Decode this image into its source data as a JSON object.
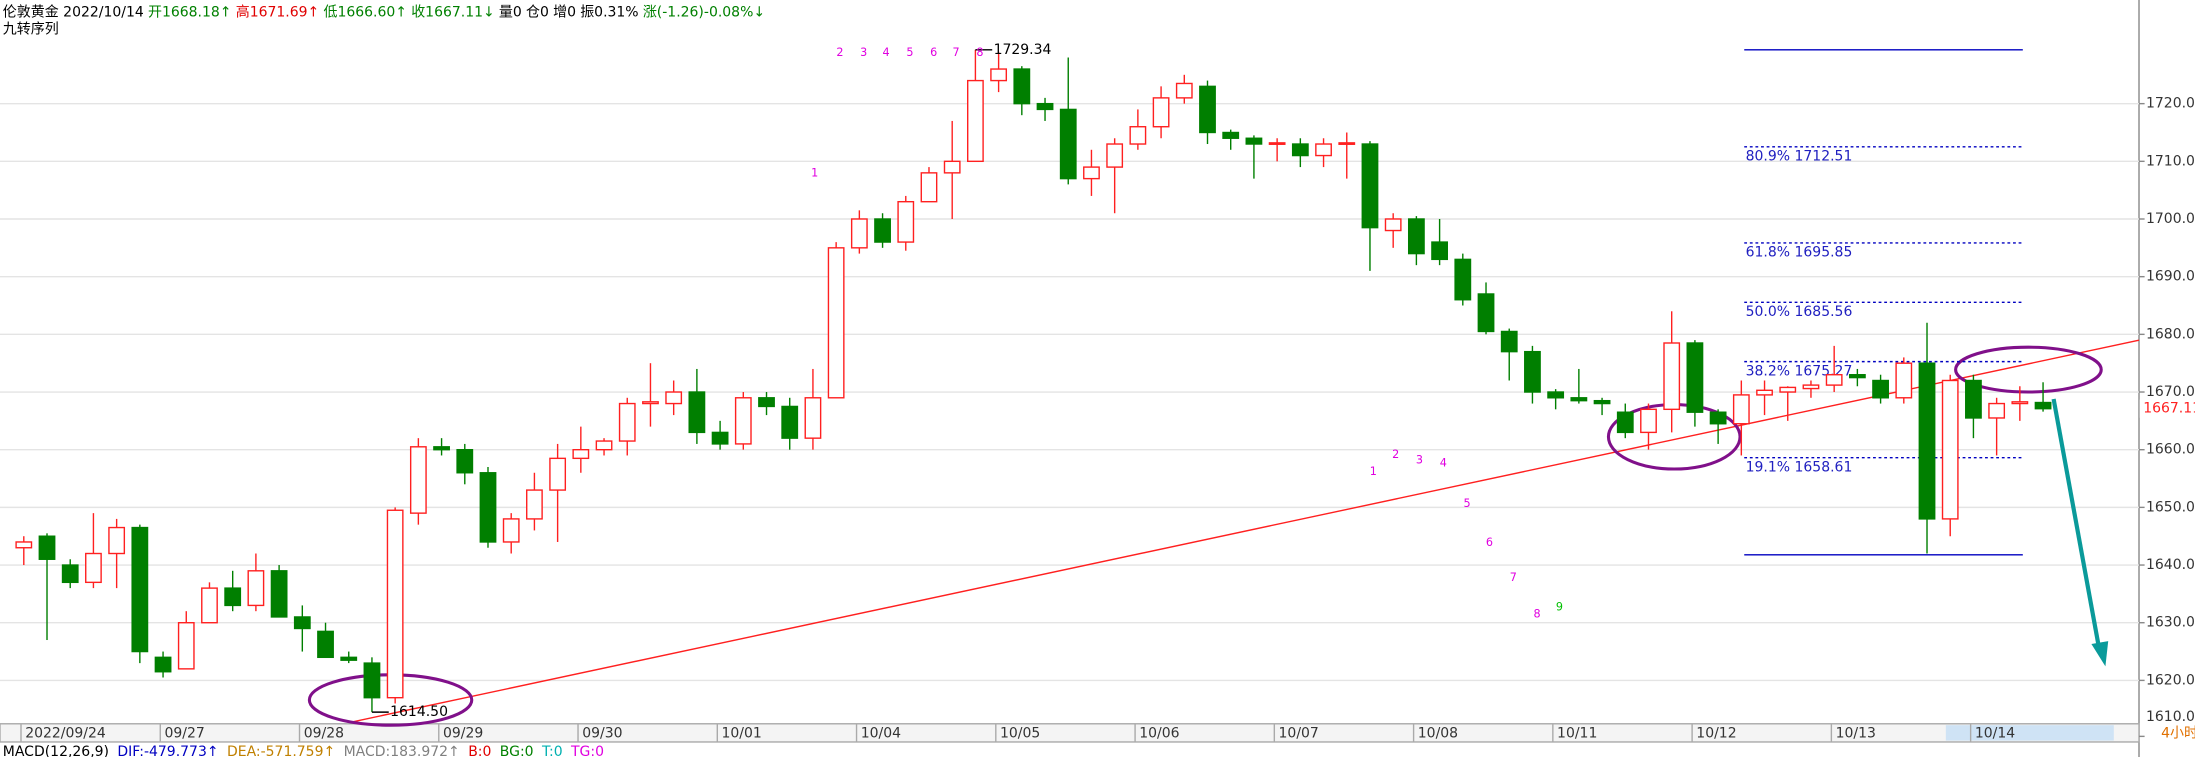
{
  "chart_data": {
    "type": "candlestick",
    "header": [
      {
        "text": "伦敦黄金 2022/10/14",
        "color": "#000000"
      },
      {
        "text": "开1668.18↑",
        "color": "#008000"
      },
      {
        "text": "高1671.69↑",
        "color": "#e00000"
      },
      {
        "text": "低1666.60↑",
        "color": "#008000"
      },
      {
        "text": "收1667.11↓",
        "color": "#008000"
      },
      {
        "text": "量0",
        "color": "#000000"
      },
      {
        "text": "仓0",
        "color": "#000000"
      },
      {
        "text": "增0",
        "color": "#000000"
      },
      {
        "text": "振0.31%",
        "color": "#000000"
      },
      {
        "text": "涨(-1.26)-0.08%↓",
        "color": "#008000"
      }
    ],
    "subtitle": "九转序列",
    "categories": [
      "2022/09/24",
      null,
      null,
      null,
      null,
      null,
      "09/27",
      null,
      null,
      null,
      null,
      null,
      "09/28",
      null,
      null,
      null,
      null,
      null,
      "09/29",
      null,
      null,
      null,
      null,
      null,
      "09/30",
      null,
      null,
      null,
      null,
      null,
      "10/01",
      null,
      null,
      null,
      null,
      null,
      "10/04",
      null,
      null,
      null,
      null,
      null,
      "10/05",
      null,
      null,
      null,
      null,
      null,
      "10/06",
      null,
      null,
      null,
      null,
      null,
      "10/07",
      null,
      null,
      null,
      null,
      null,
      "10/08",
      null,
      null,
      null,
      null,
      null,
      "10/11",
      null,
      null,
      null,
      null,
      null,
      "10/12",
      null,
      null,
      null,
      null,
      null,
      "10/13",
      null,
      null,
      null,
      null,
      null,
      "10/14",
      null,
      null,
      null
    ],
    "open": [
      1643,
      1645,
      1640,
      1637,
      1642,
      1646.5,
      1624,
      1622,
      1630,
      1636,
      1633,
      1639,
      1631,
      1628.5,
      1624,
      1623,
      1617,
      1649,
      1660.5,
      1660,
      1656,
      1644,
      1648,
      1653,
      1658.5,
      1660,
      1661.5,
      1668,
      1668,
      1670,
      1663,
      1661,
      1669,
      1667.5,
      1662,
      1669,
      1695,
      1700,
      1696,
      1703,
      1708,
      1710,
      1724,
      1726,
      1720,
      1719,
      1707,
      1709,
      1713,
      1716,
      1721,
      1723,
      1715,
      1714,
      1713,
      1713,
      1711,
      1713,
      1713,
      1698,
      1700,
      1696,
      1693,
      1687,
      1680.5,
      1677,
      1670,
      1669,
      1668.5,
      1666.5,
      1663,
      1667,
      1678.5,
      1666.5,
      1664.5,
      1669.5,
      1670,
      1670.6,
      1671.2,
      1673,
      1672,
      1669,
      1675,
      1648,
      1672,
      1665.5,
      1668,
      1668.18
    ],
    "high": [
      1645,
      1645.5,
      1641,
      1649,
      1648,
      1647,
      1625,
      1632,
      1637,
      1639,
      1642,
      1640,
      1633,
      1630,
      1625,
      1624,
      1650,
      1662,
      1662,
      1661,
      1657,
      1649,
      1656,
      1661,
      1664,
      1662,
      1669,
      1675,
      1672,
      1674,
      1665,
      1670,
      1670,
      1669,
      1674,
      1696,
      1701.5,
      1701,
      1704,
      1709,
      1717,
      1729.34,
      1729,
      1726.5,
      1721,
      1728,
      1712,
      1714,
      1719,
      1723,
      1725,
      1724,
      1715.5,
      1714.5,
      1714,
      1714,
      1714,
      1715,
      1713.5,
      1701,
      1700.5,
      1700,
      1694,
      1689,
      1681,
      1678,
      1670.5,
      1674,
      1669,
      1668,
      1668,
      1684,
      1679,
      1667,
      1672,
      1672,
      1671,
      1672,
      1678,
      1674,
      1673,
      1676,
      1682,
      1673,
      1673,
      1669,
      1671,
      1671.69
    ],
    "low": [
      1640,
      1627,
      1636,
      1636,
      1636,
      1623,
      1620.5,
      1622,
      1630,
      1632,
      1632,
      1631,
      1625,
      1624,
      1623,
      1614.5,
      1616,
      1647,
      1659,
      1654,
      1643,
      1642,
      1646,
      1644,
      1656,
      1659,
      1659,
      1664,
      1666,
      1661,
      1660,
      1660,
      1666,
      1660,
      1660,
      1669,
      1694,
      1695,
      1694.5,
      1703,
      1700,
      1710,
      1722,
      1718,
      1717,
      1706,
      1704,
      1701,
      1712,
      1714,
      1720,
      1713,
      1712,
      1707,
      1710,
      1709,
      1709,
      1707,
      1691,
      1695,
      1692,
      1692,
      1685,
      1680,
      1672,
      1668,
      1667,
      1668,
      1666,
      1662,
      1660,
      1663,
      1664,
      1661,
      1659,
      1666,
      1665,
      1669,
      1670,
      1671,
      1668,
      1668,
      1642,
      1645,
      1662,
      1659,
      1665,
      1666.6
    ],
    "close": [
      1644,
      1641,
      1637,
      1642,
      1646.5,
      1625,
      1621.5,
      1630,
      1636,
      1633,
      1639,
      1631,
      1629,
      1624,
      1623.5,
      1617,
      1649.5,
      1660.5,
      1660,
      1656,
      1644,
      1648,
      1653,
      1658.5,
      1660,
      1661.5,
      1668,
      1668.3,
      1670,
      1663,
      1661,
      1669,
      1667.5,
      1662,
      1669,
      1695,
      1700,
      1696,
      1703,
      1708,
      1710,
      1724,
      1726,
      1720,
      1719,
      1707,
      1709,
      1713,
      1716,
      1721,
      1723.5,
      1715,
      1714,
      1713,
      1713.2,
      1711,
      1713,
      1713.2,
      1698.5,
      1700,
      1694,
      1693,
      1686,
      1680.5,
      1677,
      1670,
      1669,
      1668.5,
      1668,
      1663,
      1667,
      1678.5,
      1666.5,
      1664.5,
      1669.5,
      1670.3,
      1670.8,
      1671.2,
      1673,
      1672.5,
      1669,
      1675,
      1648,
      1672,
      1665.5,
      1668,
      1668.3,
      1667.11
    ],
    "up_color": "#ff2020",
    "down_color": "#007f00",
    "ylim": [
      1612.72,
      1736.75
    ],
    "yticks": [
      {
        "value": 1610,
        "label": "1610.00"
      },
      {
        "value": 1620,
        "label": "1620.00"
      },
      {
        "value": 1630,
        "label": "1630.00"
      },
      {
        "value": 1640,
        "label": "1640.00"
      },
      {
        "value": 1650,
        "label": "1650.00"
      },
      {
        "value": 1660,
        "label": "1660.00"
      },
      {
        "value": 1670,
        "label": "1670.00"
      },
      {
        "value": 1680,
        "label": "1680.00"
      },
      {
        "value": 1690,
        "label": "1690.00"
      },
      {
        "value": 1700,
        "label": "1700.00"
      },
      {
        "value": 1710,
        "label": "1710.00"
      },
      {
        "value": 1720,
        "label": "1720.00"
      }
    ],
    "grid": true,
    "last_price": {
      "value": 1667.11,
      "label": "1667.11"
    },
    "high_label": {
      "value": 1729.34,
      "label": "1729.34"
    },
    "low_label": {
      "value": 1614.5,
      "label": "1614.50"
    },
    "fib_solid": [
      1729.34,
      1641.78
    ],
    "fib_levels": [
      {
        "value": 1712.51,
        "label": "80.9% 1712.51"
      },
      {
        "value": 1695.85,
        "label": "61.8% 1695.85"
      },
      {
        "value": 1685.56,
        "label": "50.0% 1685.56"
      },
      {
        "value": 1675.27,
        "label": "38.2% 1675.27"
      },
      {
        "value": 1658.61,
        "label": "19.1% 1658.61"
      }
    ],
    "td_top": [
      "1",
      "2",
      "3",
      "4",
      "5",
      "6",
      "7",
      "8"
    ],
    "td_bottom": [
      "1",
      "2",
      "3",
      "4",
      "5",
      "6",
      "7",
      "8",
      "9"
    ],
    "indicator": [
      {
        "text": "MACD(12,26,9)",
        "color": "#000000"
      },
      {
        "text": "DIF:-479.773↑",
        "color": "#0000c0"
      },
      {
        "text": "DEA:-571.759↑",
        "color": "#c08000"
      },
      {
        "text": "MACD:183.972↑",
        "color": "#808080"
      },
      {
        "text": "B:0",
        "color": "#e00000"
      },
      {
        "text": "BG:0",
        "color": "#008000"
      },
      {
        "text": "T:0",
        "color": "#00b0b0"
      },
      {
        "text": "TG:0",
        "color": "#e000e0"
      }
    ],
    "period": "4小时"
  }
}
